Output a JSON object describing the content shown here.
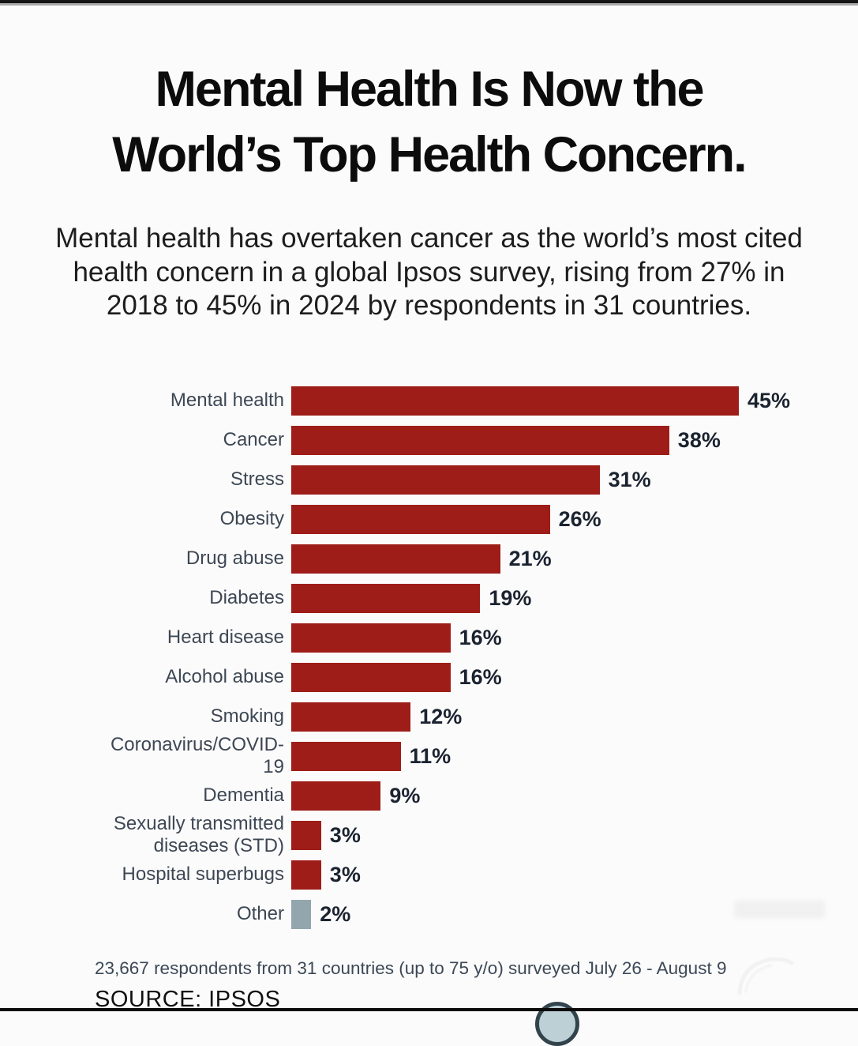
{
  "header": {
    "title_lines": [
      "Mental Health Is Now the",
      "World’s Top Health Concern."
    ],
    "subtitle": "Mental health has overtaken cancer as the world’s most cited health concern in a global Ipsos survey, rising from 27% in 2018 to 45% in 2024 by respondents in 31 countries."
  },
  "chart_data": {
    "type": "bar",
    "orientation": "horizontal",
    "title": "",
    "categories": [
      "Mental health",
      "Cancer",
      "Stress",
      "Obesity",
      "Drug abuse",
      "Diabetes",
      "Heart disease",
      "Alcohol abuse",
      "Smoking",
      "Coronavirus/COVID-19",
      "Dementia",
      "Sexually transmitted diseases (STD)",
      "Hospital superbugs",
      "Other"
    ],
    "values": [
      45,
      38,
      31,
      26,
      21,
      19,
      16,
      16,
      12,
      11,
      9,
      3,
      3,
      2
    ],
    "value_labels": [
      "45%",
      "38%",
      "31%",
      "26%",
      "21%",
      "19%",
      "16%",
      "16%",
      "12%",
      "11%",
      "9%",
      "3%",
      "3%",
      "2%"
    ],
    "colors": [
      "#9e1d18",
      "#9e1d18",
      "#9e1d18",
      "#9e1d18",
      "#9e1d18",
      "#9e1d18",
      "#9e1d18",
      "#9e1d18",
      "#9e1d18",
      "#9e1d18",
      "#9e1d18",
      "#9e1d18",
      "#9e1d18",
      "#93a6ae"
    ],
    "bar_color": "#9e1d18",
    "other_bar_color": "#93a6ae",
    "xlim": [
      0,
      47
    ],
    "grid": false,
    "legend": false
  },
  "footer": {
    "note": "23,667 respondents from 31 countries (up to 75 y/o) surveyed July 26 - August 9",
    "source": "SOURCE: IPSOS"
  }
}
